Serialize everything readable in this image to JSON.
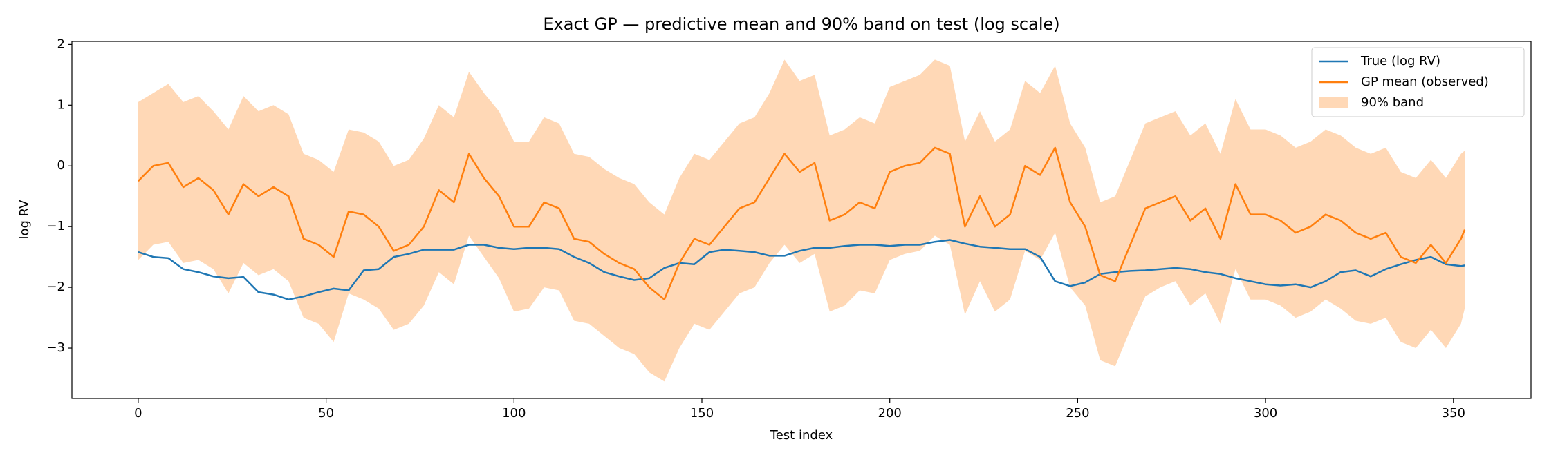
{
  "chart_data": {
    "type": "line",
    "title": "Exact GP — predictive mean and 90% band on test (log scale)",
    "x_label": "Test index",
    "y_label": "log RV",
    "x": [
      0,
      4,
      8,
      12,
      16,
      20,
      24,
      28,
      32,
      36,
      40,
      44,
      48,
      52,
      56,
      60,
      64,
      68,
      72,
      76,
      80,
      84,
      88,
      92,
      96,
      100,
      104,
      108,
      112,
      116,
      120,
      124,
      128,
      132,
      136,
      140,
      144,
      148,
      152,
      156,
      160,
      164,
      168,
      172,
      176,
      180,
      184,
      188,
      192,
      196,
      200,
      204,
      208,
      212,
      216,
      220,
      224,
      228,
      232,
      236,
      240,
      244,
      248,
      252,
      256,
      260,
      264,
      268,
      272,
      276,
      280,
      284,
      288,
      292,
      296,
      300,
      304,
      308,
      312,
      316,
      320,
      324,
      328,
      332,
      336,
      340,
      344,
      348,
      352,
      353
    ],
    "series": [
      {
        "name": "True (log RV)",
        "color": "#1f77b4",
        "values": [
          -1.42,
          -1.5,
          -1.52,
          -1.7,
          -1.75,
          -1.82,
          -1.85,
          -1.83,
          -2.08,
          -2.12,
          -2.2,
          -2.15,
          -2.08,
          -2.02,
          -2.05,
          -1.72,
          -1.7,
          -1.5,
          -1.45,
          -1.38,
          -1.38,
          -1.38,
          -1.3,
          -1.3,
          -1.35,
          -1.37,
          -1.35,
          -1.35,
          -1.37,
          -1.5,
          -1.6,
          -1.75,
          -1.82,
          -1.88,
          -1.85,
          -1.68,
          -1.6,
          -1.62,
          -1.42,
          -1.38,
          -1.4,
          -1.42,
          -1.48,
          -1.48,
          -1.4,
          -1.35,
          -1.35,
          -1.32,
          -1.3,
          -1.3,
          -1.32,
          -1.3,
          -1.3,
          -1.25,
          -1.22,
          -1.28,
          -1.33,
          -1.35,
          -1.37,
          -1.37,
          -1.5,
          -1.9,
          -1.98,
          -1.92,
          -1.78,
          -1.75,
          -1.73,
          -1.72,
          -1.7,
          -1.68,
          -1.7,
          -1.75,
          -1.78,
          -1.85,
          -1.9,
          -1.95,
          -1.97,
          -1.95,
          -2.0,
          -1.9,
          -1.75,
          -1.72,
          -1.82,
          -1.7,
          -1.62,
          -1.55,
          -1.5,
          -1.62,
          -1.65,
          -1.64
        ]
      },
      {
        "name": "GP mean (observed)",
        "color": "#ff7f0e",
        "values": [
          -0.25,
          0.0,
          0.05,
          -0.35,
          -0.2,
          -0.4,
          -0.8,
          -0.3,
          -0.5,
          -0.35,
          -0.5,
          -1.2,
          -1.3,
          -1.5,
          -0.75,
          -0.8,
          -1.0,
          -1.4,
          -1.3,
          -1.0,
          -0.4,
          -0.6,
          0.2,
          -0.2,
          -0.5,
          -1.0,
          -1.0,
          -0.6,
          -0.7,
          -1.2,
          -1.25,
          -1.45,
          -1.6,
          -1.7,
          -2.0,
          -2.2,
          -1.6,
          -1.2,
          -1.3,
          -1.0,
          -0.7,
          -0.6,
          -0.2,
          0.2,
          -0.1,
          0.05,
          -0.9,
          -0.8,
          -0.6,
          -0.7,
          -0.1,
          0.0,
          0.05,
          0.3,
          0.2,
          -1.0,
          -0.5,
          -1.0,
          -0.8,
          0.0,
          -0.15,
          0.3,
          -0.6,
          -1.0,
          -1.8,
          -1.9,
          -1.3,
          -0.7,
          -0.6,
          -0.5,
          -0.9,
          -0.7,
          -1.2,
          -0.3,
          -0.8,
          -0.8,
          -0.9,
          -1.1,
          -1.0,
          -0.8,
          -0.9,
          -1.1,
          -1.2,
          -1.1,
          -1.5,
          -1.6,
          -1.3,
          -1.6,
          -1.2,
          -1.05
        ]
      }
    ],
    "band": {
      "name": "90% band",
      "color": "#ff7f0e",
      "upper": [
        1.05,
        1.2,
        1.35,
        1.05,
        1.15,
        0.9,
        0.6,
        1.15,
        0.9,
        1.0,
        0.85,
        0.2,
        0.1,
        -0.1,
        0.6,
        0.55,
        0.4,
        0.0,
        0.1,
        0.45,
        1.0,
        0.8,
        1.55,
        1.2,
        0.9,
        0.4,
        0.4,
        0.8,
        0.7,
        0.2,
        0.15,
        -0.05,
        -0.2,
        -0.3,
        -0.6,
        -0.8,
        -0.2,
        0.2,
        0.1,
        0.4,
        0.7,
        0.8,
        1.2,
        1.75,
        1.4,
        1.5,
        0.5,
        0.6,
        0.8,
        0.7,
        1.3,
        1.4,
        1.5,
        1.75,
        1.65,
        0.4,
        0.9,
        0.4,
        0.6,
        1.4,
        1.2,
        1.65,
        0.7,
        0.3,
        -0.6,
        -0.5,
        0.1,
        0.7,
        0.8,
        0.9,
        0.5,
        0.7,
        0.2,
        1.1,
        0.6,
        0.6,
        0.5,
        0.3,
        0.4,
        0.6,
        0.5,
        0.3,
        0.2,
        0.3,
        -0.1,
        -0.2,
        0.1,
        -0.2,
        0.2,
        0.25
      ],
      "lower": [
        -1.55,
        -1.3,
        -1.25,
        -1.6,
        -1.55,
        -1.7,
        -2.1,
        -1.6,
        -1.8,
        -1.7,
        -1.9,
        -2.5,
        -2.6,
        -2.9,
        -2.1,
        -2.2,
        -2.35,
        -2.7,
        -2.6,
        -2.3,
        -1.75,
        -1.95,
        -1.15,
        -1.5,
        -1.85,
        -2.4,
        -2.35,
        -2.0,
        -2.05,
        -2.55,
        -2.6,
        -2.8,
        -3.0,
        -3.1,
        -3.4,
        -3.55,
        -3.0,
        -2.6,
        -2.7,
        -2.4,
        -2.1,
        -2.0,
        -1.6,
        -1.3,
        -1.6,
        -1.45,
        -2.4,
        -2.3,
        -2.05,
        -2.1,
        -1.55,
        -1.45,
        -1.4,
        -1.15,
        -1.3,
        -2.45,
        -1.9,
        -2.4,
        -2.2,
        -1.4,
        -1.55,
        -1.1,
        -2.0,
        -2.3,
        -3.2,
        -3.3,
        -2.7,
        -2.15,
        -2.0,
        -1.9,
        -2.3,
        -2.1,
        -2.6,
        -1.7,
        -2.2,
        -2.2,
        -2.3,
        -2.5,
        -2.4,
        -2.2,
        -2.35,
        -2.55,
        -2.6,
        -2.5,
        -2.9,
        -3.0,
        -2.7,
        -3.0,
        -2.6,
        -2.35
      ]
    },
    "xlim": [
      -17.65,
      370.65
    ],
    "ylim": [
      -3.83,
      2.05
    ],
    "xticks": [
      0,
      50,
      100,
      150,
      200,
      250,
      300,
      350
    ],
    "yticks": [
      {
        "value": -3,
        "label": "−3"
      },
      {
        "value": -2,
        "label": "−2"
      },
      {
        "value": -1,
        "label": "−1"
      },
      0,
      1,
      2
    ],
    "legend": "upper right",
    "grid": false
  }
}
